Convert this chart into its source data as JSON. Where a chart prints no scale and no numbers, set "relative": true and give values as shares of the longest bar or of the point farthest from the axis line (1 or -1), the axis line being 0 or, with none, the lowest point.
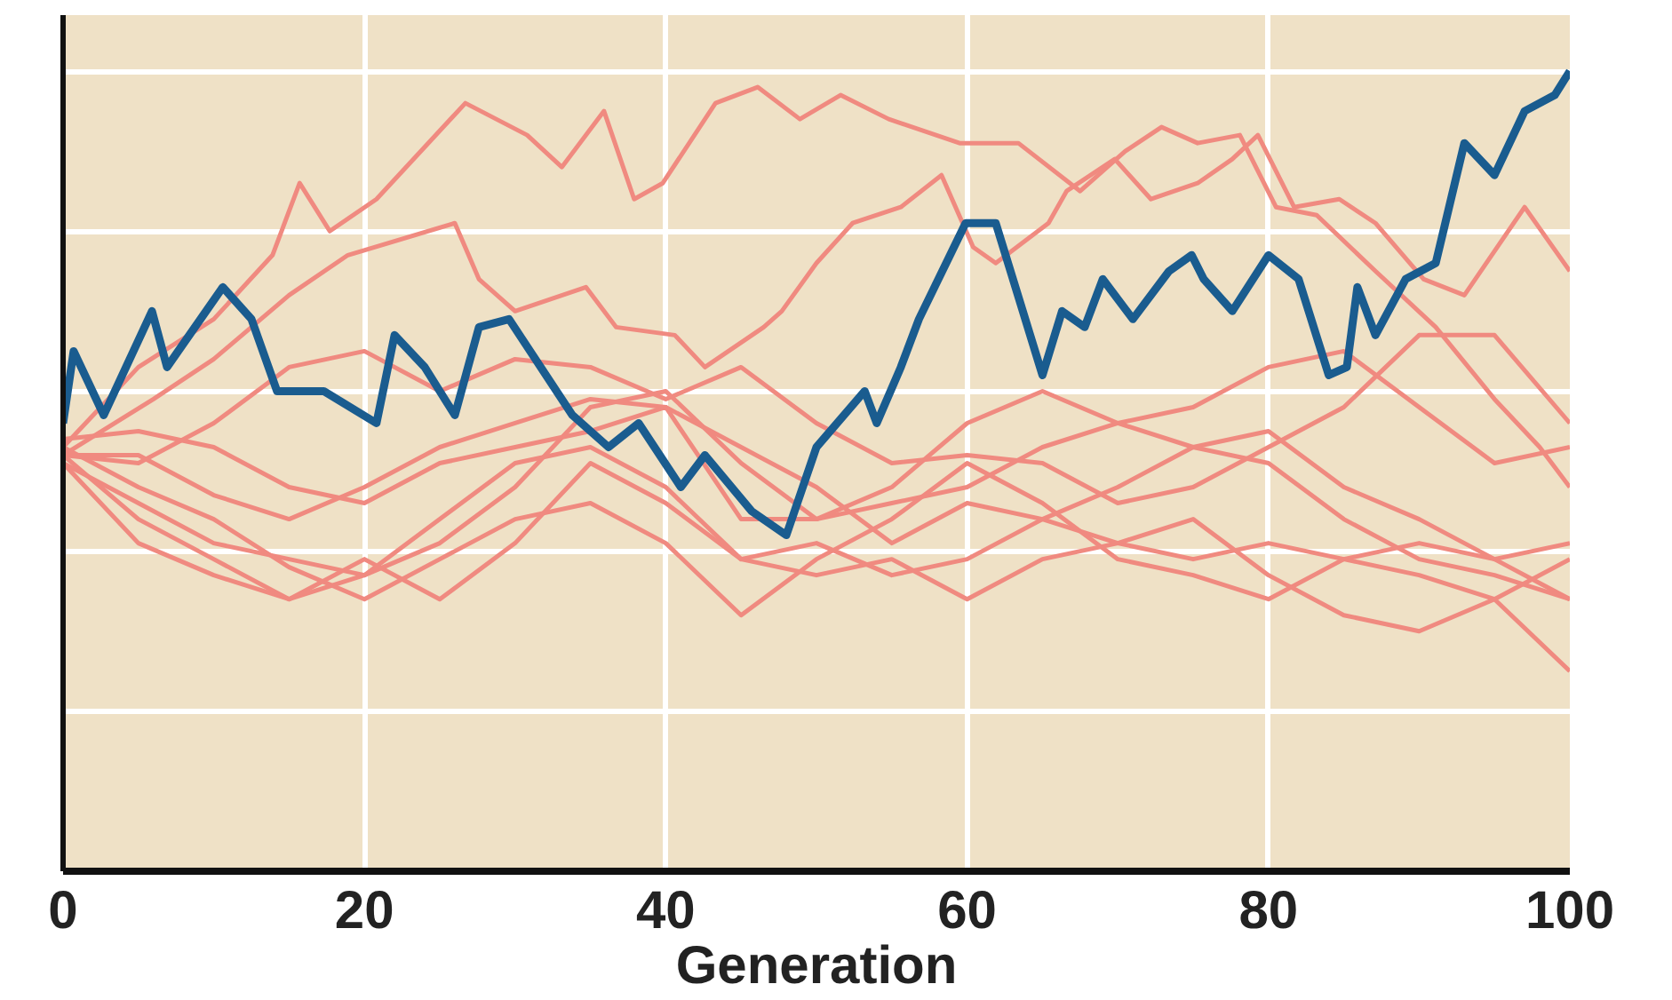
{
  "chart_data": {
    "type": "line",
    "xlabel": "Generation",
    "relative": true,
    "xlim": [
      0,
      100
    ],
    "xticks": [
      0,
      20,
      40,
      60,
      80,
      100
    ],
    "grid": true,
    "tick_labels": "x",
    "marker": "none",
    "line_style": "solid",
    "x": [
      0,
      5,
      10,
      15,
      20,
      25,
      30,
      35,
      40,
      45,
      50,
      55,
      60,
      65,
      70,
      75,
      80,
      85,
      90,
      95,
      100
    ],
    "series": [
      {
        "color": "#f08a80",
        "x": [
          0,
          5,
          10,
          13.9,
          15.7,
          17.7,
          20.8,
          26.7,
          30.8,
          33.1,
          35.9,
          37.9,
          39.8,
          43.3,
          46.1,
          48.9,
          51.6,
          54.8,
          59.5,
          63.4,
          67.5,
          70.5,
          72.9,
          75.3,
          78.1,
          80.5,
          83.2,
          87.1,
          91.1,
          95,
          98,
          100
        ],
        "values": [
          0.53,
          0.63,
          0.69,
          0.77,
          0.86,
          0.8,
          0.84,
          0.96,
          0.92,
          0.88,
          0.95,
          0.84,
          0.86,
          0.96,
          0.98,
          0.94,
          0.97,
          0.94,
          0.91,
          0.91,
          0.85,
          0.9,
          0.93,
          0.91,
          0.92,
          0.83,
          0.82,
          0.75,
          0.68,
          0.59,
          0.53,
          0.48
        ]
      },
      {
        "color": "#f08a80",
        "x": [
          0,
          6,
          10,
          15,
          18.9,
          26,
          27.6,
          30,
          34.7,
          36.7,
          40.6,
          42.6,
          46.5,
          47.7,
          50,
          52.4,
          55.6,
          58.3,
          60.4,
          61.9,
          65.4,
          66.6,
          69.8,
          72.2,
          75.3,
          77.6,
          79.3,
          81.7,
          84.7,
          87.1,
          90.3,
          93,
          97,
          100
        ],
        "values": [
          0.52,
          0.59,
          0.64,
          0.72,
          0.77,
          0.81,
          0.74,
          0.7,
          0.73,
          0.68,
          0.67,
          0.63,
          0.68,
          0.7,
          0.76,
          0.81,
          0.83,
          0.87,
          0.78,
          0.76,
          0.81,
          0.85,
          0.89,
          0.84,
          0.86,
          0.89,
          0.92,
          0.83,
          0.84,
          0.81,
          0.74,
          0.72,
          0.83,
          0.75
        ]
      },
      {
        "color": "#f08a80",
        "values": [
          0.52,
          0.51,
          0.56,
          0.63,
          0.65,
          0.6,
          0.64,
          0.63,
          0.59,
          0.63,
          0.56,
          0.51,
          0.52,
          0.51,
          0.46,
          0.48,
          0.53,
          0.58,
          0.67,
          0.67,
          0.56
        ]
      },
      {
        "color": "#f08a80",
        "values": [
          0.51,
          0.46,
          0.41,
          0.39,
          0.37,
          0.41,
          0.48,
          0.58,
          0.6,
          0.51,
          0.44,
          0.46,
          0.48,
          0.53,
          0.56,
          0.58,
          0.63,
          0.65,
          0.58,
          0.51,
          0.53
        ]
      },
      {
        "color": "#f08a80",
        "values": [
          0.52,
          0.44,
          0.39,
          0.34,
          0.39,
          0.34,
          0.41,
          0.51,
          0.46,
          0.39,
          0.41,
          0.37,
          0.39,
          0.44,
          0.41,
          0.39,
          0.41,
          0.39,
          0.41,
          0.39,
          0.34
        ]
      },
      {
        "color": "#f08a80",
        "values": [
          0.53,
          0.48,
          0.44,
          0.38,
          0.34,
          0.39,
          0.44,
          0.46,
          0.41,
          0.32,
          0.39,
          0.44,
          0.51,
          0.46,
          0.39,
          0.37,
          0.34,
          0.39,
          0.37,
          0.34,
          0.39
        ]
      },
      {
        "color": "#f08a80",
        "values": [
          0.51,
          0.41,
          0.37,
          0.34,
          0.37,
          0.44,
          0.51,
          0.53,
          0.48,
          0.39,
          0.37,
          0.39,
          0.34,
          0.39,
          0.41,
          0.44,
          0.37,
          0.32,
          0.3,
          0.34,
          0.25
        ]
      },
      {
        "color": "#f08a80",
        "values": [
          0.54,
          0.55,
          0.53,
          0.48,
          0.46,
          0.51,
          0.53,
          0.55,
          0.58,
          0.53,
          0.48,
          0.41,
          0.46,
          0.44,
          0.48,
          0.53,
          0.55,
          0.48,
          0.44,
          0.39,
          0.41
        ]
      },
      {
        "color": "#f08a80",
        "values": [
          0.52,
          0.52,
          0.47,
          0.44,
          0.48,
          0.53,
          0.56,
          0.59,
          0.58,
          0.44,
          0.44,
          0.48,
          0.56,
          0.6,
          0.56,
          0.53,
          0.51,
          0.44,
          0.39,
          0.37,
          0.34
        ]
      },
      {
        "color": "#1a5c8f",
        "x": [
          0,
          0.7,
          2.7,
          5.9,
          6.9,
          10.6,
          12.5,
          14.2,
          17.3,
          20.8,
          22,
          24,
          26,
          27.6,
          29.6,
          33.8,
          36.2,
          38.2,
          41,
          42.6,
          45.7,
          48,
          50,
          53.2,
          54,
          55.6,
          56.8,
          59.9,
          61.9,
          65,
          66.3,
          67.8,
          69,
          71,
          73.4,
          74.9,
          75.7,
          77.6,
          80,
          82,
          84,
          85.2,
          85.9,
          87.1,
          89.1,
          91.1,
          93,
          95,
          97,
          99,
          100
        ],
        "values": [
          0.56,
          0.65,
          0.57,
          0.7,
          0.63,
          0.73,
          0.69,
          0.6,
          0.6,
          0.56,
          0.67,
          0.63,
          0.57,
          0.68,
          0.69,
          0.57,
          0.53,
          0.56,
          0.48,
          0.52,
          0.45,
          0.42,
          0.53,
          0.6,
          0.56,
          0.63,
          0.69,
          0.81,
          0.81,
          0.62,
          0.7,
          0.68,
          0.74,
          0.69,
          0.75,
          0.77,
          0.74,
          0.7,
          0.77,
          0.74,
          0.62,
          0.63,
          0.73,
          0.67,
          0.74,
          0.76,
          0.91,
          0.87,
          0.95,
          0.97,
          1.0
        ]
      }
    ]
  }
}
